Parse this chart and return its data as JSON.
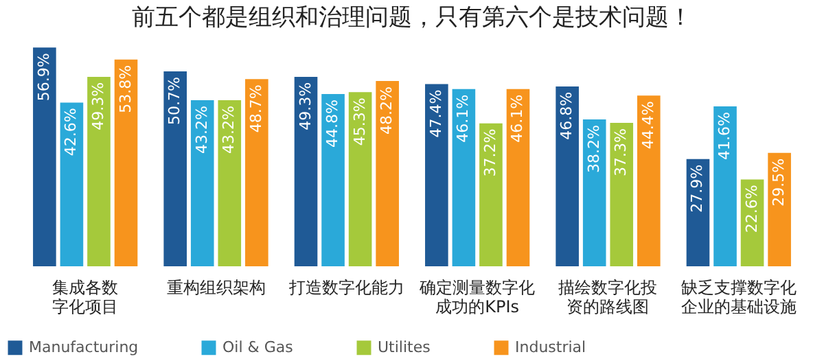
{
  "chart_data": {
    "type": "bar",
    "title": "前五个都是组织和治理问题，只有第六个是技术问题！",
    "categories": [
      "集成各数字化项目",
      "重构组织架构",
      "打造数字化能力",
      "确定测量数字化成功的KPIs",
      "描绘数字化投资的路线图",
      "缺乏支撑数字化企业的基础设施"
    ],
    "series": [
      {
        "name": "Manufacturing",
        "color": "#1f5a96",
        "values": [
          56.9,
          50.7,
          49.3,
          47.4,
          46.8,
          27.9
        ],
        "value_labels": [
          "56.9%",
          "50.7%",
          "49.3%",
          "47.4%",
          "46.8%",
          "27.9%"
        ]
      },
      {
        "name": "Oil & Gas",
        "color": "#2aa9d9",
        "values": [
          42.6,
          43.2,
          44.8,
          46.1,
          38.2,
          41.6
        ],
        "value_labels": [
          "42.6%",
          "43.2%",
          "44.8%",
          "46.1%",
          "38.2%",
          "41.6%"
        ]
      },
      {
        "name": "Utilites",
        "color": "#a5c93b",
        "values": [
          49.3,
          43.2,
          45.3,
          37.2,
          37.3,
          22.6
        ],
        "value_labels": [
          "49.3%",
          "43.2%",
          "45.3%",
          "37.2%",
          "37.3%",
          "22.6%"
        ]
      },
      {
        "name": "Industrial",
        "color": "#f7941d",
        "values": [
          53.8,
          48.7,
          48.2,
          46.1,
          44.4,
          29.5
        ],
        "value_labels": [
          "53.8%",
          "48.7%",
          "48.2%",
          "46.1%",
          "44.4%",
          "29.5%"
        ]
      }
    ],
    "tick_labels": "x",
    "legend": "bottom",
    "grid": false
  }
}
